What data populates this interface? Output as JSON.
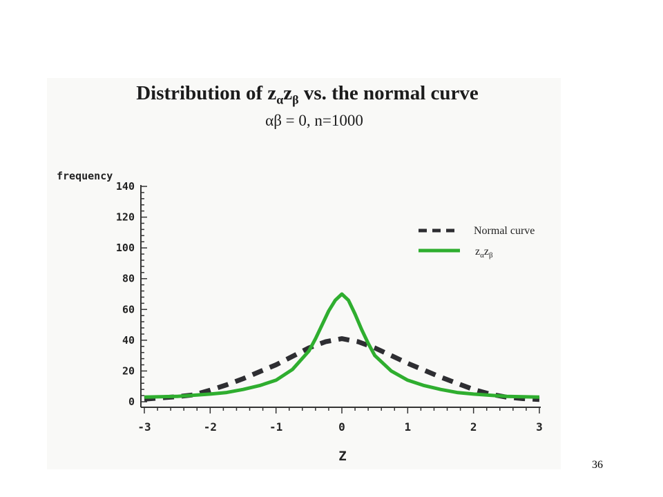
{
  "slide_number": "36",
  "chart_data": {
    "type": "line",
    "title_parts": {
      "lead": "Distribution of z",
      "sub_a": "α",
      "mid": "z",
      "sub_b": "β",
      "tail": " vs.  the normal curve"
    },
    "subtitle": "αβ = 0, n=1000",
    "xlabel": "Z",
    "ylabel": "frequency",
    "xlim": [
      -3,
      3
    ],
    "ylim": [
      0,
      140
    ],
    "x_ticks": [
      -3,
      -2,
      -1,
      0,
      1,
      2,
      3
    ],
    "y_ticks": [
      0,
      20,
      40,
      60,
      80,
      100,
      120,
      140
    ],
    "x_tick_labels": [
      "-3",
      "-2",
      "-1",
      "0",
      "1",
      "2",
      "3"
    ],
    "y_tick_labels": [
      "0",
      "20",
      "40",
      "60",
      "80",
      "100",
      "120",
      "140"
    ],
    "grid": false,
    "legend_position": "top-right",
    "legend": [
      {
        "label": "Normal curve",
        "style": "dashed",
        "color": "#2e2e32"
      },
      {
        "label_parts": {
          "z1": "z",
          "s1": "α",
          "z2": "z",
          "s2": "β"
        },
        "style": "solid",
        "color": "#2fae2f"
      }
    ],
    "series": [
      {
        "style": "dashed",
        "color": "#2e2e32",
        "x": [
          -3,
          -2.75,
          -2.5,
          -2.25,
          -2,
          -1.75,
          -1.5,
          -1.25,
          -1,
          -0.75,
          -0.5,
          -0.25,
          0,
          0.25,
          0.5,
          0.75,
          1,
          1.25,
          1.5,
          1.75,
          2,
          2.25,
          2.5,
          2.75,
          3
        ],
        "values": [
          1.7,
          2.5,
          3.3,
          4.5,
          7.5,
          11,
          15,
          19.5,
          24,
          29.5,
          35,
          39,
          41,
          39,
          35,
          30,
          25,
          20.5,
          16,
          12,
          8,
          5,
          3,
          2,
          1.5
        ]
      },
      {
        "style": "solid",
        "color": "#2fae2f",
        "x": [
          -3,
          -2.5,
          -2,
          -1.75,
          -1.5,
          -1.25,
          -1,
          -0.75,
          -0.5,
          -0.4,
          -0.3,
          -0.2,
          -0.1,
          0,
          0.1,
          0.2,
          0.3,
          0.4,
          0.5,
          0.75,
          1,
          1.25,
          1.5,
          1.75,
          2,
          2.5,
          3
        ],
        "values": [
          3,
          3.5,
          5,
          6,
          8,
          10.5,
          14,
          21,
          33,
          41,
          50,
          59,
          66,
          70,
          66,
          57,
          47,
          38,
          30,
          20,
          14,
          10.5,
          8,
          6,
          5,
          3.5,
          3
        ]
      }
    ]
  }
}
